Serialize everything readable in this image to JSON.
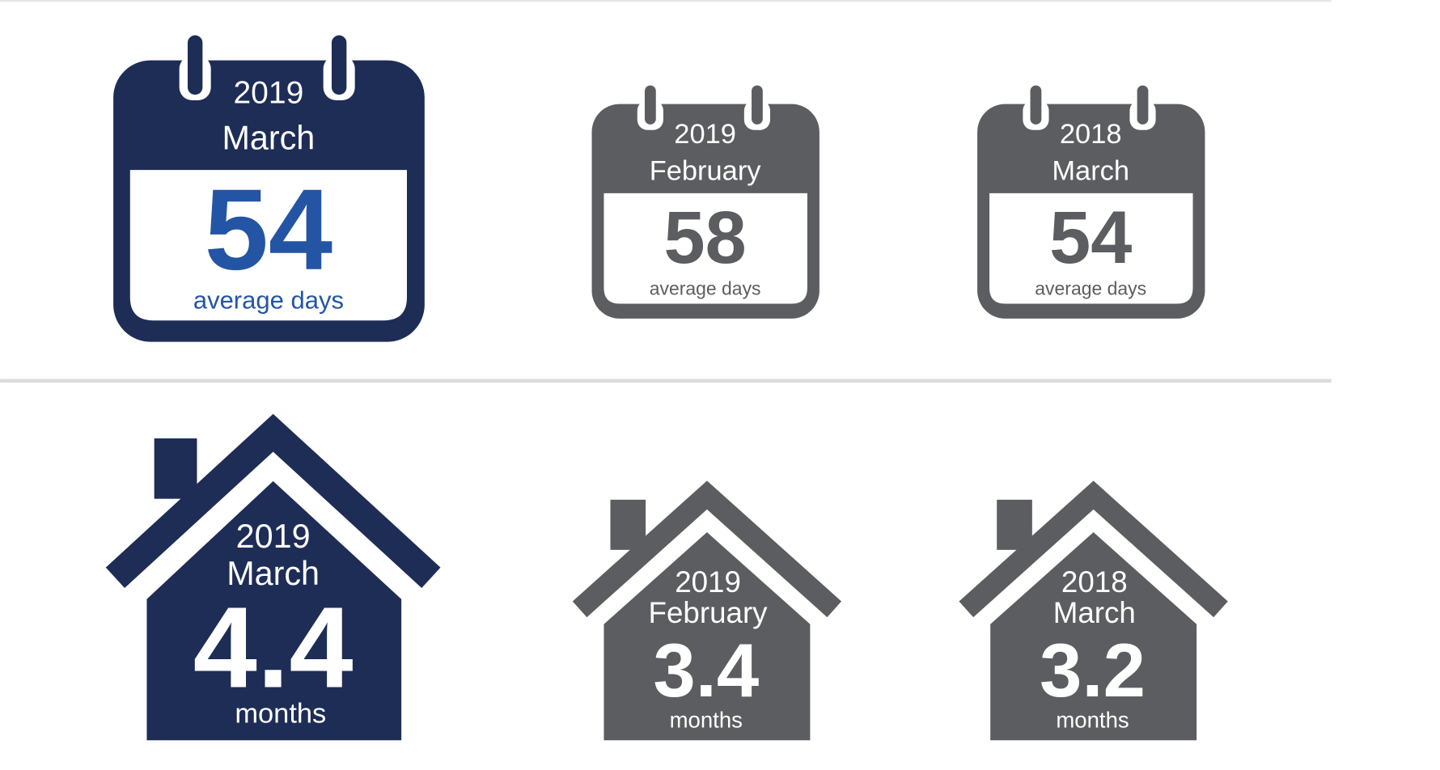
{
  "calendars": [
    {
      "year": "2019",
      "month": "March",
      "value": 54,
      "unit": "average days"
    },
    {
      "year": "2019",
      "month": "February",
      "value": 58,
      "unit": "average days"
    },
    {
      "year": "2018",
      "month": "March",
      "value": 54,
      "unit": "average days"
    }
  ],
  "houses": [
    {
      "year": "2019",
      "month": "March",
      "value": 4.4,
      "unit": "months"
    },
    {
      "year": "2019",
      "month": "February",
      "value": 3.4,
      "unit": "months"
    },
    {
      "year": "2018",
      "month": "March",
      "value": 3.2,
      "unit": "months"
    }
  ]
}
